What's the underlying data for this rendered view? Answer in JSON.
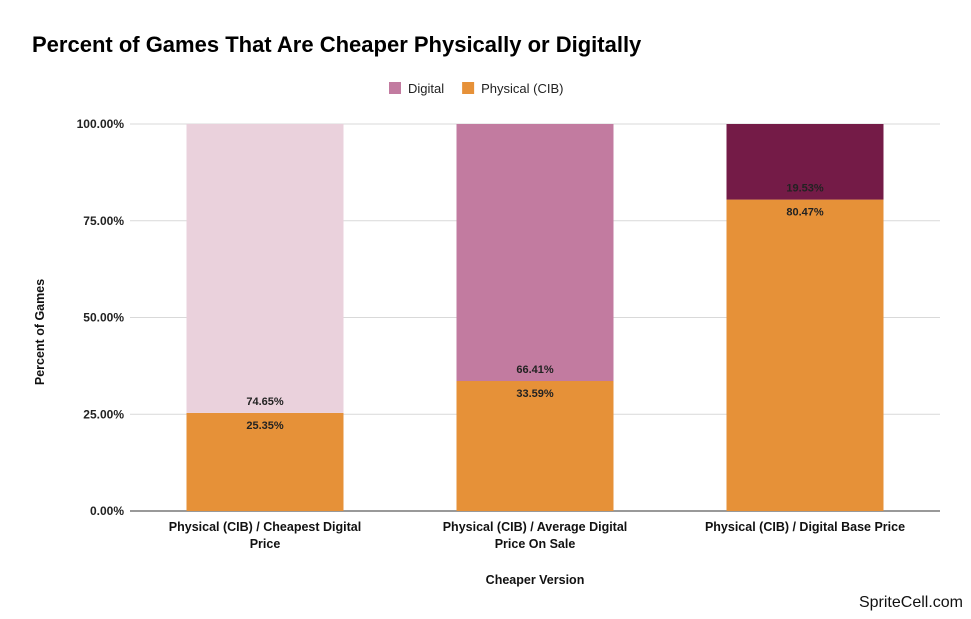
{
  "chart_data": {
    "type": "bar",
    "stacked": true,
    "title": "Percent of Games That Are Cheaper Physically or Digitally",
    "xlabel": "Cheaper Version",
    "ylabel": "Percent of Games",
    "ylim": [
      0,
      100
    ],
    "yticks": [
      "0.00%",
      "25.00%",
      "50.00%",
      "75.00%",
      "100.00%"
    ],
    "grid": true,
    "legend_position": "top",
    "categories": [
      [
        "Physical (CIB) / Cheapest Digital",
        "Price"
      ],
      [
        "Physical (CIB) / Average Digital",
        "Price On Sale"
      ],
      [
        "Physical (CIB) / Digital Base Price"
      ]
    ],
    "series": [
      {
        "name": "Physical (CIB)",
        "values": [
          25.35,
          33.59,
          80.47
        ],
        "labels": [
          "25.35%",
          "33.59%",
          "80.47%"
        ],
        "colors": [
          "#e69138",
          "#e69138",
          "#e69138"
        ]
      },
      {
        "name": "Digital",
        "values": [
          74.65,
          66.41,
          19.53
        ],
        "labels": [
          "74.65%",
          "66.41%",
          "19.53%"
        ],
        "colors": [
          "#ead1dc",
          "#c27ba0",
          "#741b47"
        ]
      }
    ],
    "legend": [
      {
        "name": "Digital",
        "color": "#c27ba0"
      },
      {
        "name": "Physical (CIB)",
        "color": "#e69138"
      }
    ]
  },
  "footer": {
    "brand": "SpriteCell.com"
  }
}
